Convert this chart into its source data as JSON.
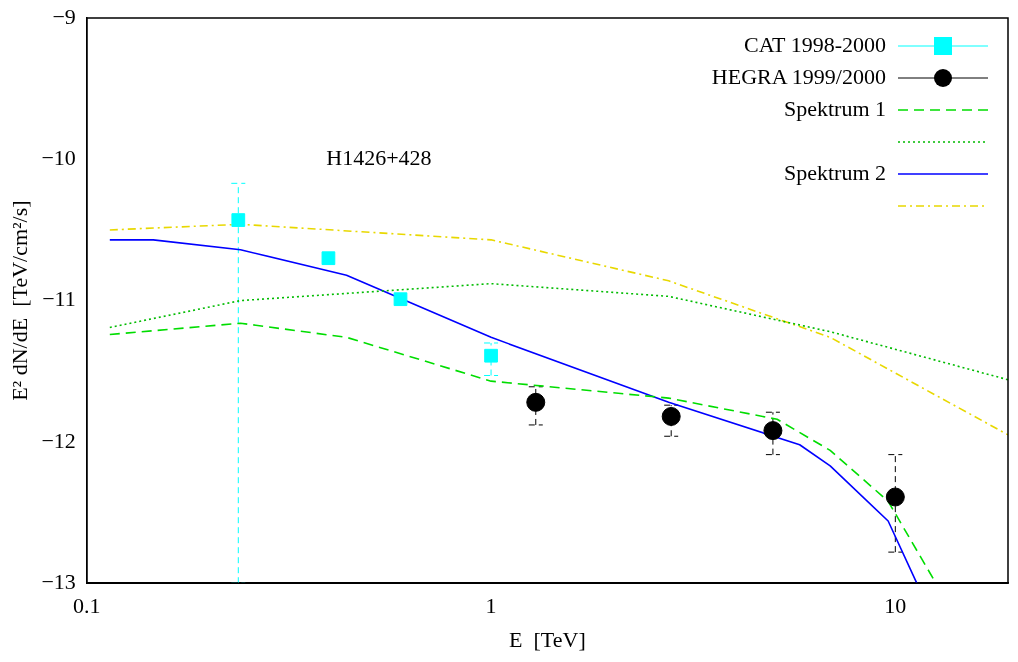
{
  "chart_data": {
    "type": "scatter",
    "xlabel": "E  [TeV]",
    "ylabel": "E² dN/dE  [TeV/cm²/s]",
    "log": "x",
    "xlim": [
      0.1,
      19
    ],
    "xticks": [
      0.1,
      1,
      10
    ],
    "ylim": [
      -13,
      -9
    ],
    "yticks": [
      -13,
      -12,
      -11,
      -10,
      -9
    ],
    "legend": "top right",
    "grid": false,
    "annotations": [
      "H1426+428"
    ],
    "series": [
      {
        "name": "CAT 1998-2000",
        "marker": "square",
        "color": "#00ffff",
        "x": [
          0.237,
          0.396,
          0.597,
          1.0
        ],
        "values": [
          -10.43,
          -10.7,
          -10.99,
          -11.39
        ],
        "errors": [
          [
            -13,
            -10.17
          ],
          null,
          null,
          [
            -11.53,
            -11.3
          ]
        ]
      },
      {
        "name": "HEGRA 1999/2000",
        "marker": "circle",
        "color": "#000000",
        "x": [
          1.29,
          2.79,
          4.98,
          10.0
        ],
        "values": [
          -11.72,
          -11.82,
          -11.92,
          -12.39
        ],
        "errors": [
          [
            -11.88,
            -11.61
          ],
          [
            -11.96,
            -11.74
          ],
          [
            -12.09,
            -11.79
          ],
          [
            -12.78,
            -12.09
          ]
        ]
      },
      {
        "name": "Spektrum 1",
        "type": "line",
        "line_style": "dashed",
        "color": "#00dd00",
        "x": [
          0.114,
          0.24,
          0.439,
          1.0,
          2.75,
          5.1,
          6.9,
          9.6,
          12.6
        ],
        "values": [
          -11.24,
          -11.16,
          -11.26,
          -11.57,
          -11.69,
          -11.84,
          -12.06,
          -12.42,
          -13.0
        ]
      },
      {
        "type": "line",
        "line_style": "dotted",
        "color": "#00bb00",
        "x": [
          0.114,
          0.24,
          1.0,
          2.75,
          6.9,
          19
        ],
        "values": [
          -11.19,
          -11.0,
          -10.88,
          -10.97,
          -11.22,
          -11.56
        ]
      },
      {
        "name": "Spektrum 2",
        "type": "line",
        "line_style": "solid",
        "color": "#0000ff",
        "x": [
          0.114,
          0.146,
          0.24,
          0.439,
          1.0,
          2.75,
          5.8,
          6.9,
          9.6,
          11.3
        ],
        "values": [
          -10.57,
          -10.57,
          -10.64,
          -10.82,
          -11.26,
          -11.72,
          -12.02,
          -12.17,
          -12.56,
          -13.0
        ]
      },
      {
        "type": "line",
        "line_style": "dashdot",
        "color": "#e8d800",
        "x": [
          0.114,
          0.24,
          1.0,
          2.75,
          6.9,
          19
        ],
        "values": [
          -10.5,
          -10.46,
          -10.57,
          -10.86,
          -11.26,
          -11.95
        ]
      }
    ]
  }
}
